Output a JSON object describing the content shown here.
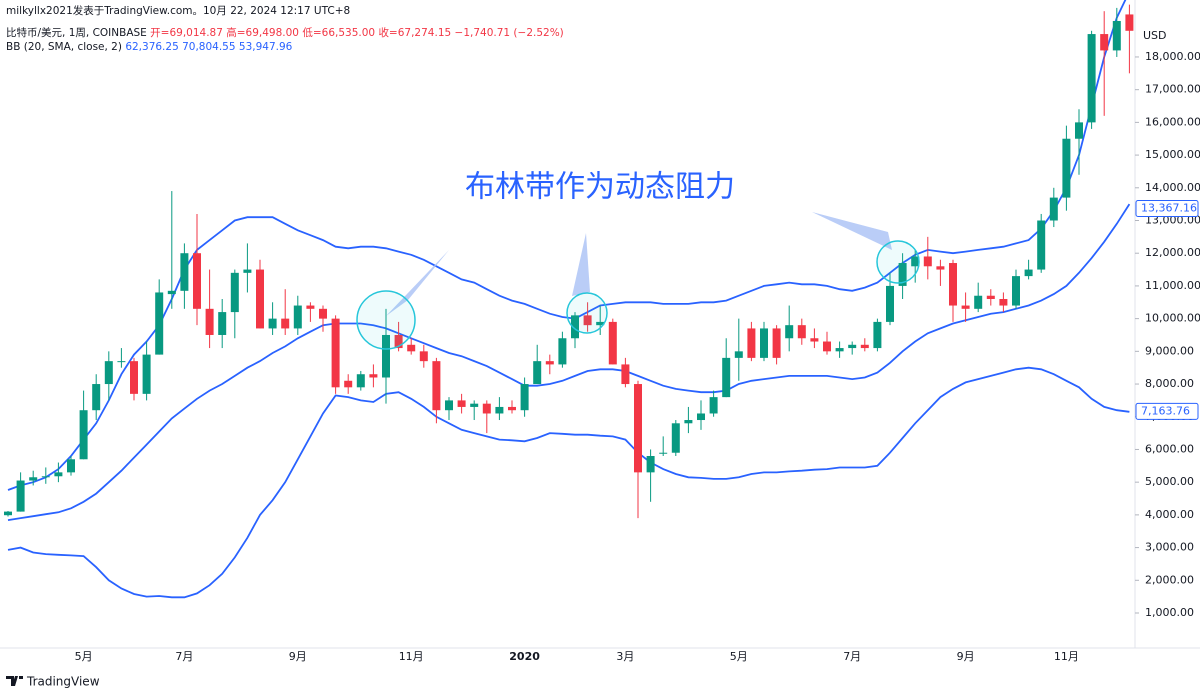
{
  "header": {
    "author_line": "milkyllx2021发表于TradingView.com。10月 22, 2024 12:17 UTC+8",
    "symbol": "比特币/美元, 1周, COINBASE",
    "ohlc": [
      "开=69,014.87",
      "高=69,498.00",
      "低=66,535.00",
      "收=67,274.15",
      "−1,740.71 (−2.52%)"
    ],
    "indicator": "BB (20, SMA, close, 2)",
    "indicator_values": [
      "62,376.25",
      "70,804.55",
      "53,947.96"
    ]
  },
  "footer": {
    "brand": "TradingView"
  },
  "chart_data": {
    "type": "candlestick",
    "annotation": "布林带作为动态阻力",
    "currency": "USD",
    "up_color": "#089981",
    "down_color": "#f23645",
    "band_color": "#2962ff",
    "categories": [
      null,
      null,
      null,
      null,
      null,
      null,
      "5月",
      null,
      null,
      null,
      null,
      null,
      null,
      null,
      "7月",
      null,
      null,
      null,
      null,
      null,
      null,
      null,
      null,
      "9月",
      null,
      null,
      null,
      null,
      null,
      null,
      null,
      null,
      "11月",
      null,
      null,
      null,
      null,
      null,
      null,
      null,
      null,
      "2020",
      null,
      null,
      null,
      null,
      null,
      null,
      null,
      "3月",
      null,
      null,
      null,
      null,
      null,
      null,
      null,
      null,
      "5月",
      null,
      null,
      null,
      null,
      null,
      null,
      null,
      null,
      "7月",
      null,
      null,
      null,
      null,
      null,
      null,
      null,
      null,
      "9月",
      null,
      null,
      null,
      null,
      null,
      null,
      null,
      "11月",
      null,
      null,
      null,
      null,
      null
    ],
    "open": [
      3990,
      4100,
      5050,
      5150,
      5180,
      5300,
      5700,
      7200,
      8000,
      8700,
      8700,
      7700,
      8900,
      10750,
      10850,
      12000,
      10300,
      9500,
      10200,
      11400,
      11500,
      9700,
      10000,
      9700,
      10400,
      10300,
      10000,
      8100,
      7900,
      8300,
      8200,
      9500,
      9200,
      9000,
      8700,
      7200,
      7500,
      7300,
      7400,
      7100,
      7300,
      7200,
      8000,
      8700,
      8600,
      9400,
      10100,
      9800,
      9900,
      8600,
      8000,
      5300,
      5900,
      5900,
      6800,
      6900,
      7100,
      7600,
      8800,
      9700,
      8800,
      9700,
      9400,
      9800,
      9400,
      9300,
      9000,
      9100,
      9200,
      9100,
      9900,
      11000,
      11600,
      11900,
      11600,
      11700,
      10400,
      10300,
      10700,
      10600,
      10400,
      11300,
      11500,
      13000,
      13700,
      15500,
      16000,
      18700,
      18200,
      19300
    ],
    "high": [
      4120,
      5300,
      5350,
      5450,
      5600,
      5800,
      7800,
      8300,
      9000,
      9100,
      8800,
      9300,
      11200,
      13900,
      12300,
      13200,
      11500,
      10600,
      11500,
      12300,
      11800,
      10500,
      10900,
      10700,
      10500,
      10400,
      10100,
      8300,
      8400,
      8600,
      10300,
      9900,
      9400,
      9200,
      8800,
      7600,
      7700,
      7500,
      7500,
      7600,
      7500,
      8200,
      9200,
      8900,
      9600,
      10200,
      10500,
      10400,
      10000,
      8800,
      8100,
      6000,
      6400,
      6900,
      7300,
      7500,
      7800,
      9400,
      10000,
      9900,
      9900,
      9800,
      10400,
      10000,
      9700,
      9600,
      9300,
      9300,
      9400,
      10000,
      11400,
      12000,
      12100,
      12500,
      11800,
      11800,
      10800,
      11100,
      10900,
      10800,
      11500,
      11800,
      13200,
      14000,
      15900,
      16400,
      18800,
      19400,
      19500,
      19600
    ],
    "low": [
      3950,
      4100,
      4900,
      4950,
      5000,
      5200,
      5700,
      6900,
      7500,
      8500,
      7500,
      7500,
      8900,
      10300,
      10300,
      9800,
      9100,
      9100,
      9400,
      10800,
      9700,
      9500,
      9500,
      9500,
      9900,
      9600,
      7700,
      7700,
      7800,
      7900,
      7400,
      9000,
      8900,
      8500,
      6800,
      6900,
      7100,
      6900,
      6500,
      6900,
      7100,
      7000,
      8000,
      8300,
      8500,
      9100,
      9600,
      9500,
      8600,
      7900,
      3900,
      4400,
      5800,
      5800,
      6500,
      6600,
      7000,
      7600,
      8100,
      8700,
      8700,
      8600,
      9000,
      9200,
      9100,
      8900,
      8800,
      8900,
      9000,
      9000,
      9800,
      10600,
      11100,
      11200,
      11000,
      9900,
      9900,
      10200,
      10400,
      10200,
      10300,
      11200,
      11400,
      12800,
      13300,
      14400,
      15800,
      16200,
      18000,
      17500
    ],
    "close": [
      4100,
      5050,
      5150,
      5180,
      5300,
      5700,
      7200,
      8000,
      8700,
      8700,
      7700,
      8900,
      10800,
      10850,
      12000,
      10300,
      9500,
      10200,
      11400,
      11500,
      9700,
      10000,
      9700,
      10400,
      10300,
      10000,
      7900,
      7900,
      8300,
      8200,
      9500,
      9100,
      9000,
      8700,
      7200,
      7500,
      7300,
      7400,
      7100,
      7300,
      7200,
      8000,
      8700,
      8600,
      9400,
      10100,
      9800,
      9900,
      8600,
      8000,
      5300,
      5800,
      5900,
      6800,
      6900,
      7100,
      7600,
      8800,
      9000,
      8800,
      9700,
      8800,
      9800,
      9400,
      9300,
      9000,
      9100,
      9200,
      9100,
      9900,
      11000,
      11700,
      11900,
      11600,
      11500,
      10400,
      10300,
      10700,
      10600,
      10400,
      11300,
      11500,
      13000,
      13700,
      15500,
      16000,
      18700,
      18200,
      19100,
      18800
    ],
    "overlays": [
      {
        "values": [
          4760,
          4900,
          5000,
          5150,
          5400,
          5800,
          6300,
          6800,
          7500,
          8300,
          8900,
          9300,
          9800,
          10600,
          11500,
          12100,
          12400,
          12700,
          13000,
          13100,
          13100,
          13100,
          12900,
          12700,
          12550,
          12400,
          12200,
          12150,
          12200,
          12200,
          12150,
          12050,
          11950,
          11800,
          11600,
          11400,
          11200,
          11100,
          10900,
          10700,
          10550,
          10450,
          10300,
          10150,
          10050,
          10000,
          10200,
          10400,
          10450,
          10500,
          10500,
          10500,
          10450,
          10450,
          10450,
          10500,
          10500,
          10550,
          10700,
          10850,
          11000,
          11050,
          11100,
          11050,
          11050,
          11000,
          10900,
          10850,
          10950,
          11100,
          11400,
          11700,
          11950,
          12100,
          12050,
          12000,
          12050,
          12100,
          12150,
          12200,
          12300,
          12400,
          12750,
          13300,
          14000,
          15000,
          16500,
          18000,
          19200,
          20000
        ]
      },
      {
        "values": [
          3840,
          3900,
          3960,
          4020,
          4080,
          4200,
          4400,
          4650,
          5000,
          5350,
          5750,
          6150,
          6550,
          6950,
          7250,
          7550,
          7800,
          8000,
          8250,
          8500,
          8700,
          8950,
          9150,
          9400,
          9600,
          9800,
          9850,
          9850,
          9850,
          9800,
          9700,
          9550,
          9400,
          9250,
          9100,
          8950,
          8850,
          8700,
          8550,
          8350,
          8150,
          7950,
          7950,
          8000,
          8100,
          8250,
          8400,
          8450,
          8450,
          8400,
          8250,
          8100,
          7950,
          7850,
          7800,
          7750,
          7750,
          7800,
          8000,
          8100,
          8150,
          8200,
          8250,
          8250,
          8250,
          8250,
          8200,
          8150,
          8200,
          8350,
          8650,
          9000,
          9300,
          9550,
          9700,
          9850,
          9950,
          10050,
          10150,
          10200,
          10300,
          10400,
          10550,
          10750,
          11000,
          11400,
          11850,
          12350,
          12900,
          13500
        ]
      },
      {
        "values": [
          2930,
          3000,
          2850,
          2800,
          2780,
          2760,
          2740,
          2400,
          2000,
          1750,
          1580,
          1500,
          1520,
          1480,
          1480,
          1600,
          1850,
          2200,
          2700,
          3300,
          4000,
          4450,
          5000,
          5700,
          6400,
          7100,
          7650,
          7600,
          7500,
          7450,
          7700,
          7750,
          7550,
          7300,
          7000,
          6800,
          6600,
          6500,
          6400,
          6300,
          6280,
          6250,
          6350,
          6500,
          6480,
          6450,
          6450,
          6420,
          6400,
          6300,
          5900,
          5600,
          5400,
          5250,
          5150,
          5130,
          5100,
          5100,
          5150,
          5250,
          5300,
          5300,
          5330,
          5350,
          5380,
          5400,
          5450,
          5450,
          5450,
          5500,
          5900,
          6350,
          6800,
          7200,
          7600,
          7850,
          8050,
          8150,
          8250,
          8350,
          8450,
          8500,
          8450,
          8300,
          8100,
          7900,
          7550,
          7300,
          7200,
          7150
        ]
      }
    ],
    "price_tags": [
      {
        "value": 13367.16,
        "label": "13,367.16"
      },
      {
        "value": 7163.76,
        "label": "7,163.76"
      }
    ],
    "ylim": [
      -70,
      19130
    ],
    "yticks": [
      {
        "value": 1000,
        "label": "1,000.00"
      },
      {
        "value": 2000,
        "label": "2,000.00"
      },
      {
        "value": 3000,
        "label": "3,000.00"
      },
      {
        "value": 4000,
        "label": "4,000.00"
      },
      {
        "value": 5000,
        "label": "5,000.00"
      },
      {
        "value": 6000,
        "label": "6,000.00"
      },
      {
        "value": 7000,
        "label": "7,000.00"
      },
      {
        "value": 8000,
        "label": "8,000.00"
      },
      {
        "value": 9000,
        "label": "9,000.00"
      },
      {
        "value": 10000,
        "label": "10,000.00"
      },
      {
        "value": 11000,
        "label": "11,000.00"
      },
      {
        "value": 12000,
        "label": "12,000.00"
      },
      {
        "value": 13000,
        "label": "13,000.00"
      },
      {
        "value": 14000,
        "label": "14,000.00"
      },
      {
        "value": 15000,
        "label": "15,000.00"
      },
      {
        "value": 16000,
        "label": "16,000.00"
      },
      {
        "value": 17000,
        "label": "17,000.00"
      },
      {
        "value": 18000,
        "label": "18,000.00"
      }
    ],
    "grid": false
  }
}
